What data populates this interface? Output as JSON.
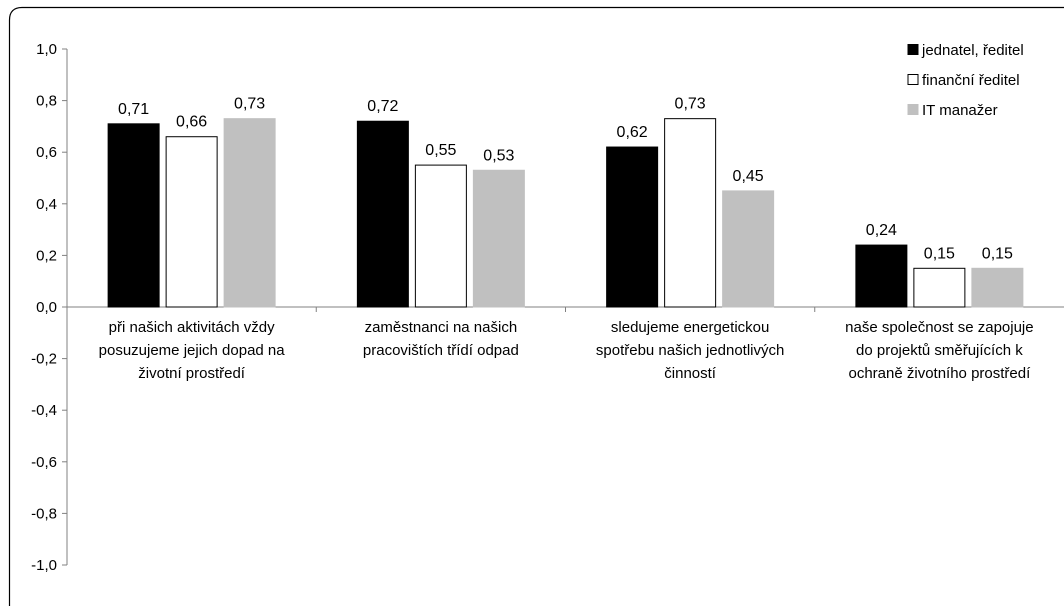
{
  "chart_data": {
    "type": "bar",
    "categories": [
      [
        "při našich aktivitách vždy",
        "posuzujeme jejich dopad na",
        "životní prostředí"
      ],
      [
        "zaměstnanci na našich",
        "pracovištích třídí odpad"
      ],
      [
        "sledujeme energetickou",
        "spotřebu našich jednotlivých",
        "činností"
      ],
      [
        "naše společnost se zapojuje",
        "do projektů směřujících k",
        "ochraně životního prostředí"
      ]
    ],
    "series": [
      {
        "name": "jednatel, ředitel",
        "values": [
          0.71,
          0.72,
          0.62,
          0.24
        ],
        "labels": [
          "0,71",
          "0,72",
          "0,62",
          "0,24"
        ],
        "color": "#000000",
        "stroke": "#000000"
      },
      {
        "name": "finanční ředitel",
        "values": [
          0.66,
          0.55,
          0.73,
          0.15
        ],
        "labels": [
          "0,66",
          "0,55",
          "0,73",
          "0,15"
        ],
        "color": "#ffffff",
        "stroke": "#000000"
      },
      {
        "name": "IT manažer",
        "values": [
          0.73,
          0.53,
          0.45,
          0.15
        ],
        "labels": [
          "0,73",
          "0,53",
          "0,45",
          "0,15"
        ],
        "color": "#c0c0c0",
        "stroke": "#c0c0c0"
      }
    ],
    "yticks": [
      1.0,
      0.8,
      0.6,
      0.4,
      0.2,
      0.0,
      -0.2,
      -0.4,
      -0.6,
      -0.8,
      -1.0
    ],
    "ytick_labels": [
      "1,0",
      "0,8",
      "0,6",
      "0,4",
      "0,2",
      "0,0",
      "-0,2",
      "-0,4",
      "-0,6",
      "-0,8",
      "-1,0"
    ],
    "ylim": [
      -1.0,
      1.0
    ],
    "grid": false,
    "legend_position": "top-right"
  }
}
